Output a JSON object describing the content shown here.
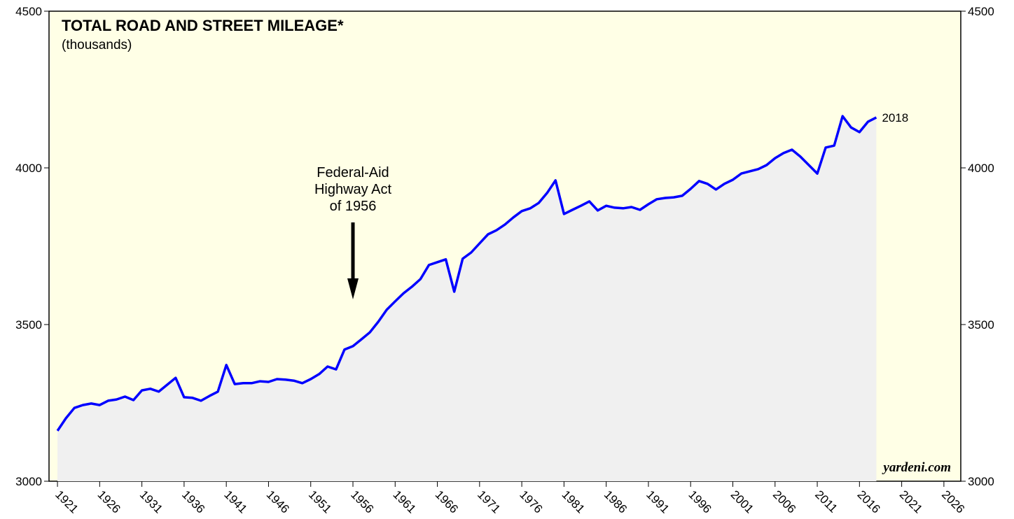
{
  "chart_data": {
    "type": "line",
    "title": "TOTAL ROAD AND STREET MILEAGE*",
    "subtitle": "(thousands)",
    "source": "yardeni.com",
    "end_label": "2018",
    "annotations": [
      {
        "text": [
          "Federal-Aid",
          "Highway Act",
          "of 1956"
        ],
        "x": 1956
      }
    ],
    "x": [
      1921,
      1922,
      1923,
      1924,
      1925,
      1926,
      1927,
      1928,
      1929,
      1930,
      1931,
      1932,
      1933,
      1934,
      1935,
      1936,
      1937,
      1938,
      1939,
      1940,
      1941,
      1942,
      1943,
      1944,
      1945,
      1946,
      1947,
      1948,
      1949,
      1950,
      1951,
      1952,
      1953,
      1954,
      1955,
      1956,
      1957,
      1958,
      1959,
      1960,
      1961,
      1962,
      1963,
      1964,
      1965,
      1966,
      1967,
      1968,
      1969,
      1970,
      1971,
      1972,
      1973,
      1974,
      1975,
      1976,
      1977,
      1978,
      1979,
      1980,
      1981,
      1982,
      1983,
      1984,
      1985,
      1986,
      1987,
      1988,
      1989,
      1990,
      1991,
      1992,
      1993,
      1994,
      1995,
      1996,
      1997,
      1998,
      1999,
      2000,
      2001,
      2002,
      2003,
      2004,
      2005,
      2006,
      2007,
      2008,
      2009,
      2010,
      2011,
      2012,
      2013,
      2014,
      2015,
      2016,
      2017,
      2018
    ],
    "series": [
      {
        "name": "Total road and street mileage",
        "color": "#0000ff",
        "fill": "#f0f0f0",
        "values": [
          3161,
          3201,
          3234,
          3243,
          3248,
          3243,
          3257,
          3261,
          3270,
          3259,
          3290,
          3295,
          3286,
          3308,
          3330,
          3268,
          3266,
          3257,
          3272,
          3286,
          3371,
          3310,
          3313,
          3313,
          3319,
          3317,
          3326,
          3324,
          3321,
          3313,
          3326,
          3342,
          3366,
          3357,
          3420,
          3431,
          3453,
          3475,
          3509,
          3547,
          3574,
          3600,
          3621,
          3645,
          3690,
          3699,
          3708,
          3605,
          3710,
          3730,
          3759,
          3788,
          3801,
          3819,
          3842,
          3862,
          3871,
          3888,
          3920,
          3960,
          3853,
          3866,
          3879,
          3893,
          3864,
          3879,
          3873,
          3871,
          3875,
          3866,
          3884,
          3900,
          3904,
          3906,
          3911,
          3933,
          3958,
          3949,
          3931,
          3949,
          3962,
          3982,
          3989,
          3996,
          4009,
          4031,
          4047,
          4058,
          4036,
          4009,
          3982,
          4065,
          4071,
          4165,
          4129,
          4114,
          4147,
          4161
        ]
      }
    ],
    "xlim": [
      1920,
      2028
    ],
    "xticks": [
      1921,
      1926,
      1931,
      1936,
      1941,
      1946,
      1951,
      1956,
      1961,
      1966,
      1971,
      1976,
      1981,
      1986,
      1991,
      1996,
      2001,
      2006,
      2011,
      2016,
      2021,
      2026
    ],
    "ylim": [
      3000,
      4500
    ],
    "yticks": [
      3000,
      3500,
      4000,
      4500
    ],
    "background": "#ffffe6"
  }
}
